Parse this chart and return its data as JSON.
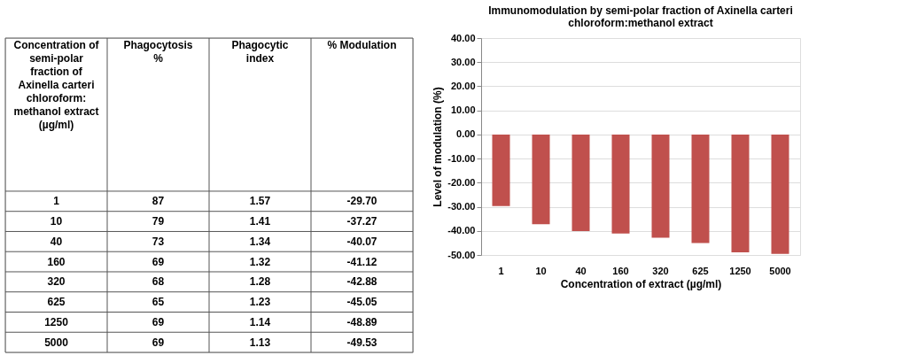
{
  "chart_data": [
    {
      "type": "other",
      "data_labels": true,
      "xlabel": "Concentration of semi-polar fraction of Axinella carteri chloroform: methanol extract (µg/ml)",
      "categories": [
        "1",
        "10",
        "40",
        "160",
        "320",
        "625",
        "1250",
        "5000"
      ],
      "series": [
        {
          "name": "Phagocytosis %",
          "values": [
            87,
            79,
            73,
            69,
            68,
            65,
            69,
            69
          ]
        },
        {
          "name": "Phagocytic index",
          "values": [
            1.57,
            1.41,
            1.34,
            1.32,
            1.28,
            1.23,
            1.14,
            1.13
          ]
        },
        {
          "name": "% Modulation",
          "values": [
            -29.7,
            -37.27,
            -40.07,
            -41.12,
            -42.88,
            -45.05,
            -48.89,
            -49.53
          ],
          "value_labels": [
            "-29.70",
            "-37.27",
            "-40.07",
            "-41.12",
            "-42.88",
            "-45.05",
            "-48.89",
            "-49.53"
          ]
        }
      ]
    },
    {
      "type": "bar",
      "title": "Immunomodulation by semi-polar fraction of Axinella carteri chloroform:methanol extract",
      "xlabel": "Concentration of extract (µg/ml)",
      "ylabel": "Level of modulation (%)",
      "categories": [
        "1",
        "10",
        "40",
        "160",
        "320",
        "625",
        "1250",
        "5000"
      ],
      "values": [
        -29.7,
        -37.27,
        -40.07,
        -41.12,
        -42.88,
        -45.05,
        -48.89,
        -49.53
      ],
      "color": "#c0504d",
      "ylim": [
        -50,
        40
      ],
      "yticks": [
        {
          "value": -50,
          "label": "-50.00"
        },
        {
          "value": -40,
          "label": "-40.00"
        },
        {
          "value": -30,
          "label": "-30.00"
        },
        {
          "value": -20,
          "label": "-20.00"
        },
        {
          "value": -10,
          "label": "-10.00"
        },
        {
          "value": 0,
          "label": "0.00"
        },
        {
          "value": 10,
          "label": "10.00"
        },
        {
          "value": 20,
          "label": "20.00"
        },
        {
          "value": 30,
          "label": "30.00"
        },
        {
          "value": 40,
          "label": "40.00"
        }
      ],
      "grid": "y"
    }
  ]
}
